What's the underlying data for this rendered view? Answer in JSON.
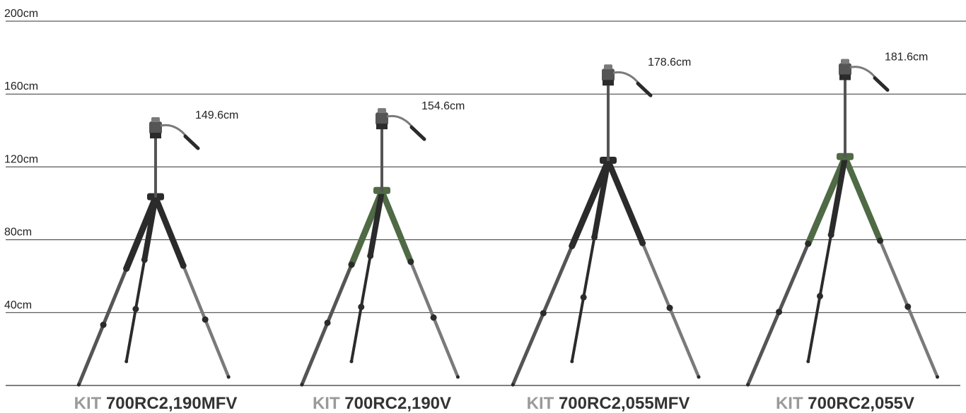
{
  "chart_data": {
    "type": "bar",
    "title": "",
    "xlabel": "",
    "ylabel": "",
    "ylim": [
      0,
      200
    ],
    "grid": true,
    "yticks": [
      {
        "value": 40,
        "label": "40cm"
      },
      {
        "value": 80,
        "label": "80cm"
      },
      {
        "value": 120,
        "label": "120cm"
      },
      {
        "value": 160,
        "label": "160cm"
      },
      {
        "value": 200,
        "label": "200cm"
      }
    ],
    "categories": [
      {
        "prefix": "KIT",
        "model": "700RC2,190MFV"
      },
      {
        "prefix": "KIT",
        "model": "700RC2,190V"
      },
      {
        "prefix": "KIT",
        "model": "700RC2,055MFV"
      },
      {
        "prefix": "KIT",
        "model": "700RC2,055V"
      }
    ],
    "values": [
      149.6,
      154.6,
      178.6,
      181.6
    ],
    "value_labels": [
      "149.6cm",
      "154.6cm",
      "178.6cm",
      "181.6cm"
    ],
    "colors": {
      "grid": "#333333",
      "tripod_dark": "#2b2b2b",
      "tripod_mid": "#555555",
      "tripod_light": "#7a7a7a",
      "tripod_green": "#4f6a45"
    }
  }
}
